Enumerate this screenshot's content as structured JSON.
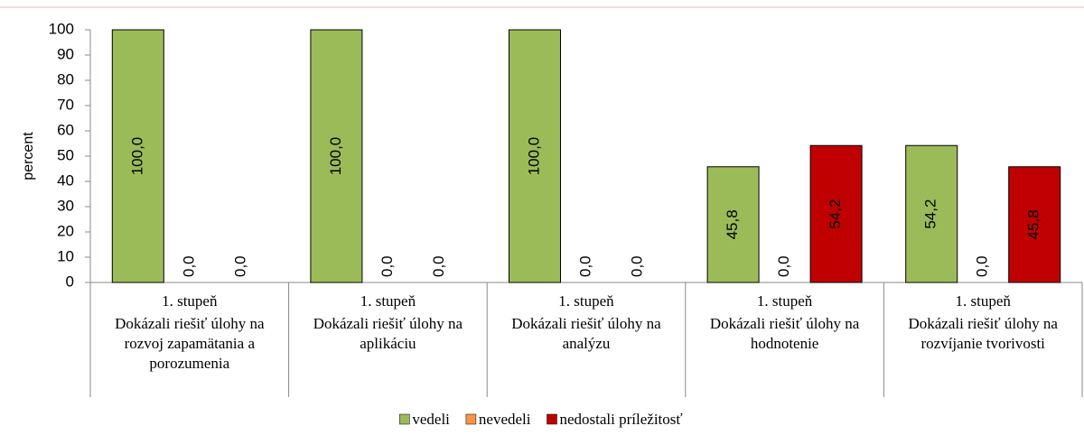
{
  "chart_data": {
    "type": "bar",
    "ylabel": "percent",
    "category_group_labels": [
      "1. stupeň",
      "1. stupeň",
      "1. stupeň",
      "1. stupeň",
      "1. stupeň"
    ],
    "categories": [
      "Dokázali riešiť úlohy na rozvoj zapamätania a porozumenia",
      "Dokázali riešiť úlohy na aplikáciu",
      "Dokázali riešiť úlohy na analýzu",
      "Dokázali riešiť úlohy na hodnotenie",
      "Dokázali riešiť úlohy na rozvíjanie tvorivosti"
    ],
    "series": [
      {
        "name": "vedeli",
        "color": "#9bbb59",
        "values": [
          100,
          100,
          100,
          45.8,
          54.2
        ],
        "value_labels": [
          "100,0",
          "100,0",
          "100,0",
          "45,8",
          "54,2"
        ]
      },
      {
        "name": "nevedeli",
        "color": "#f79646",
        "values": [
          0,
          0,
          0,
          0,
          0
        ],
        "value_labels": [
          "0,0",
          "0,0",
          "0,0",
          "0,0",
          "0,0"
        ]
      },
      {
        "name": "nedostali príležitosť",
        "color": "#c00000",
        "values": [
          0,
          0,
          0,
          54.2,
          45.8
        ],
        "value_labels": [
          "0,0",
          "0,0",
          "0,0",
          "54,2",
          "45,8"
        ]
      }
    ],
    "ylim": [
      0,
      100
    ],
    "yticks": [
      0,
      10,
      20,
      30,
      40,
      50,
      60,
      70,
      80,
      90,
      100
    ],
    "legend": "bottom"
  }
}
